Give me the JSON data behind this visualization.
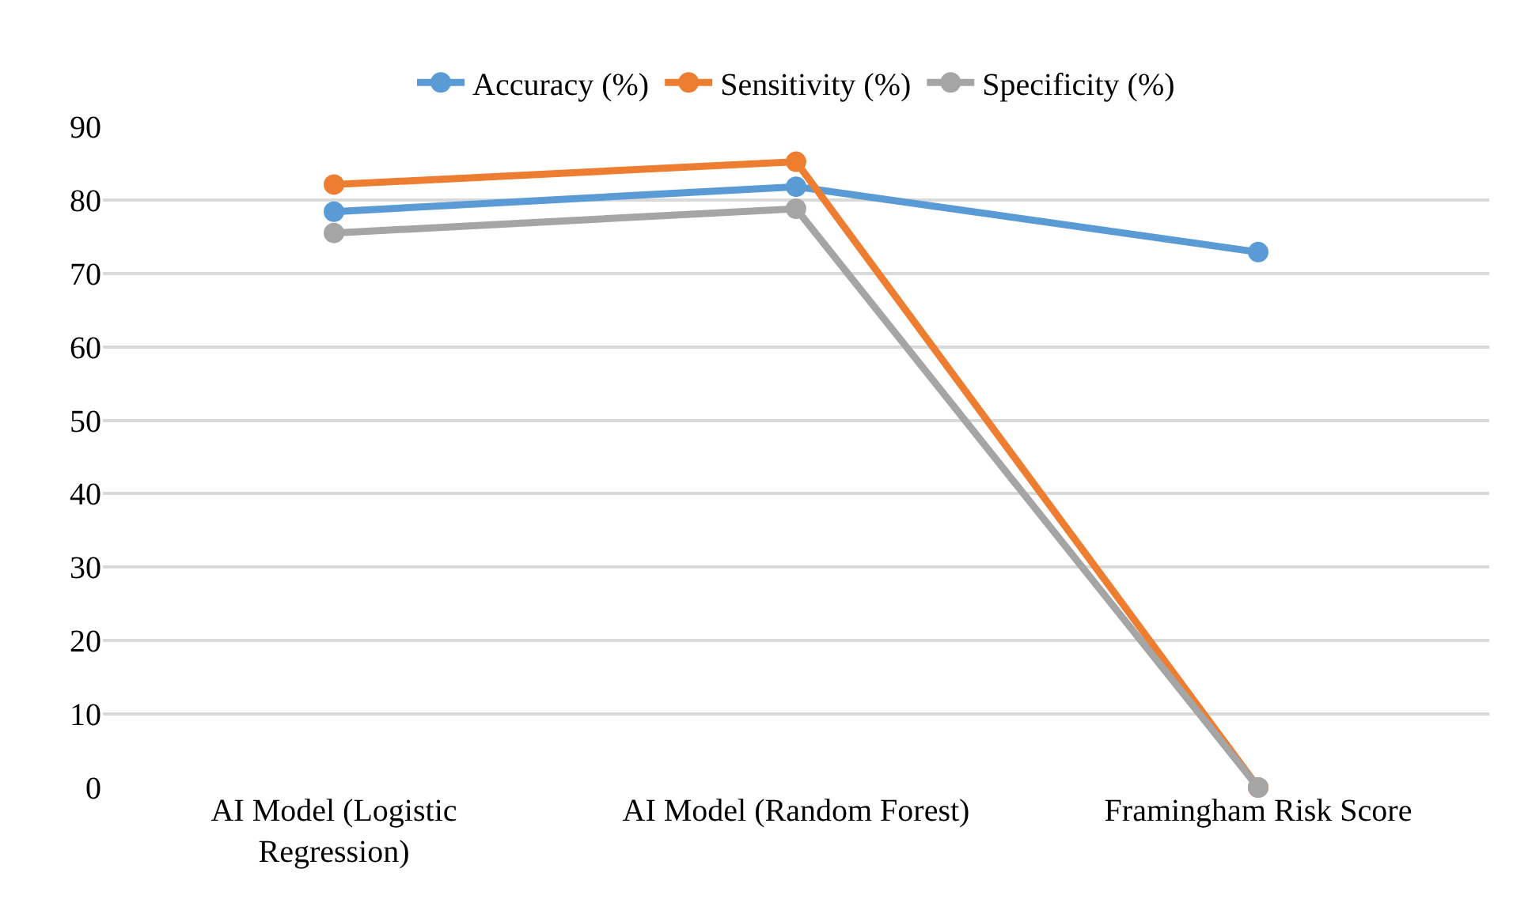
{
  "chart_data": {
    "type": "line",
    "categories": [
      "AI Model (Logistic\nRegression)",
      "AI Model (Random Forest)",
      "Framingham Risk Score"
    ],
    "series": [
      {
        "name": "Accuracy (%)",
        "color": "#5b9bd5",
        "values": [
          78.4,
          81.8,
          72.9
        ]
      },
      {
        "name": "Sensitivity (%)",
        "color": "#ed7d31",
        "values": [
          82.1,
          85.2,
          0
        ]
      },
      {
        "name": "Specificity (%)",
        "color": "#a5a5a5",
        "values": [
          75.5,
          78.8,
          0
        ]
      }
    ],
    "ylim": [
      0,
      90
    ],
    "yticks": [
      0,
      10,
      20,
      30,
      40,
      50,
      60,
      70,
      80,
      90
    ],
    "grid": "y",
    "legend": "top",
    "marker": "circle",
    "line_style": "solid"
  }
}
